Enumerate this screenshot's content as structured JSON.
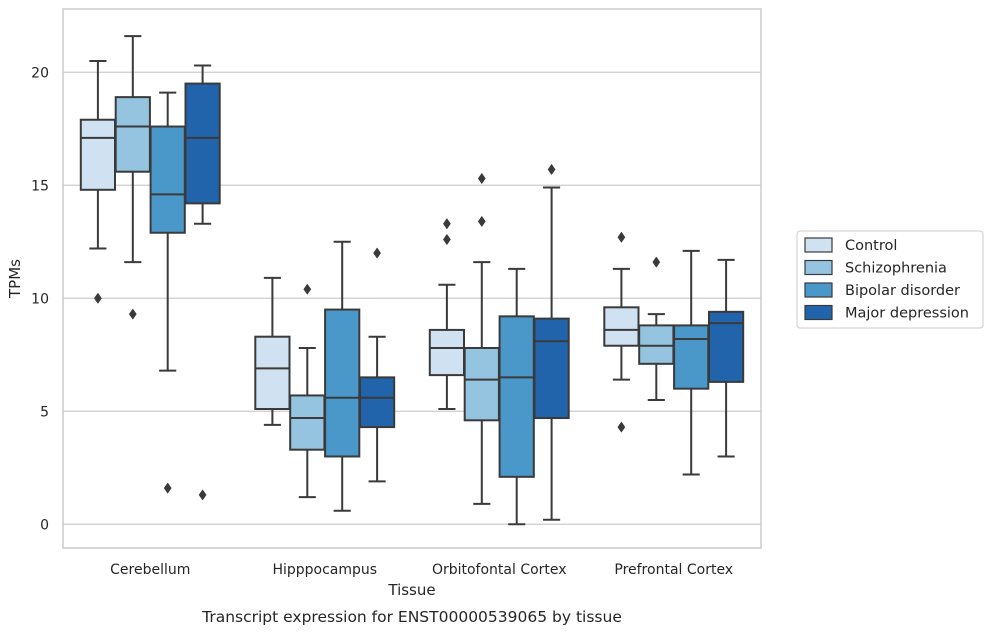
{
  "chart_data": {
    "type": "box",
    "xlabel": "Tissue",
    "ylabel": "TPMs",
    "caption": "Transcript expression for ENST00000539065 by tissue",
    "ylim": [
      -1.05,
      22.8
    ],
    "yticks": [
      0,
      5,
      10,
      15,
      20
    ],
    "grid": "horizontal",
    "legend_position": "right",
    "categories": [
      "Cerebellum",
      "Hipppocampus",
      "Orbitofontal Cortex",
      "Prefrontal Cortex"
    ],
    "series": [
      {
        "name": "Control",
        "color": "#d0e1f2",
        "boxes": [
          {
            "whisker_low": 12.2,
            "q1": 14.8,
            "median": 17.1,
            "q3": 17.9,
            "whisker_high": 20.5,
            "outliers": [
              10.0
            ]
          },
          {
            "whisker_low": 4.4,
            "q1": 5.1,
            "median": 6.9,
            "q3": 8.3,
            "whisker_high": 10.9,
            "outliers": []
          },
          {
            "whisker_low": 5.1,
            "q1": 6.6,
            "median": 7.8,
            "q3": 8.6,
            "whisker_high": 10.6,
            "outliers": [
              12.6,
              13.3
            ]
          },
          {
            "whisker_low": 6.4,
            "q1": 7.9,
            "median": 8.6,
            "q3": 9.6,
            "whisker_high": 11.3,
            "outliers": [
              4.3,
              12.7
            ]
          }
        ]
      },
      {
        "name": "Schizophrenia",
        "color": "#94c4df",
        "boxes": [
          {
            "whisker_low": 11.6,
            "q1": 15.6,
            "median": 17.6,
            "q3": 18.9,
            "whisker_high": 21.6,
            "outliers": [
              9.3
            ]
          },
          {
            "whisker_low": 1.2,
            "q1": 3.3,
            "median": 4.7,
            "q3": 5.7,
            "whisker_high": 7.8,
            "outliers": [
              10.4
            ]
          },
          {
            "whisker_low": 0.9,
            "q1": 4.6,
            "median": 6.4,
            "q3": 7.8,
            "whisker_high": 11.6,
            "outliers": [
              13.4,
              15.3
            ]
          },
          {
            "whisker_low": 5.5,
            "q1": 7.1,
            "median": 7.9,
            "q3": 8.8,
            "whisker_high": 9.3,
            "outliers": [
              11.6
            ]
          }
        ]
      },
      {
        "name": "Bipolar disorder",
        "color": "#4a98c9",
        "boxes": [
          {
            "whisker_low": 6.8,
            "q1": 12.9,
            "median": 14.6,
            "q3": 17.6,
            "whisker_high": 19.1,
            "outliers": [
              1.6
            ]
          },
          {
            "whisker_low": 0.6,
            "q1": 3.0,
            "median": 5.6,
            "q3": 9.5,
            "whisker_high": 12.5,
            "outliers": []
          },
          {
            "whisker_low": 0.0,
            "q1": 2.1,
            "median": 6.5,
            "q3": 9.2,
            "whisker_high": 11.3,
            "outliers": []
          },
          {
            "whisker_low": 2.2,
            "q1": 6.0,
            "median": 8.2,
            "q3": 8.8,
            "whisker_high": 12.1,
            "outliers": []
          }
        ]
      },
      {
        "name": "Major depression",
        "color": "#2164ab",
        "boxes": [
          {
            "whisker_low": 13.3,
            "q1": 14.2,
            "median": 17.1,
            "q3": 19.5,
            "whisker_high": 20.3,
            "outliers": [
              1.3
            ]
          },
          {
            "whisker_low": 1.9,
            "q1": 4.3,
            "median": 5.6,
            "q3": 6.5,
            "whisker_high": 8.3,
            "outliers": [
              12.0
            ]
          },
          {
            "whisker_low": 0.2,
            "q1": 4.7,
            "median": 8.1,
            "q3": 9.1,
            "whisker_high": 14.9,
            "outliers": [
              15.7
            ]
          },
          {
            "whisker_low": 3.0,
            "q1": 6.3,
            "median": 8.9,
            "q3": 9.4,
            "whisker_high": 11.7,
            "outliers": []
          }
        ]
      }
    ]
  }
}
